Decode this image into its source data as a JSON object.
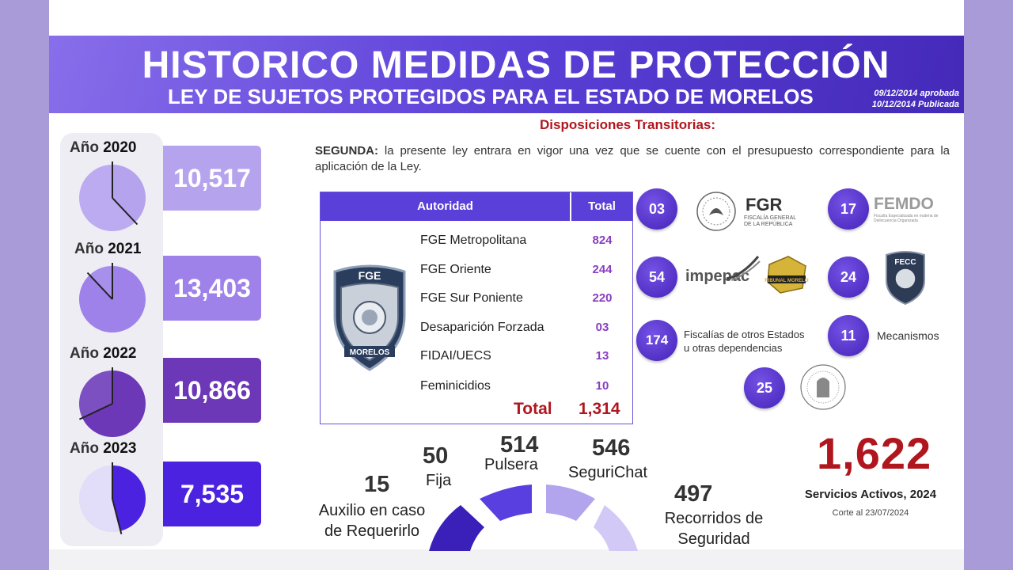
{
  "header": {
    "title": "HISTORICO MEDIDAS DE PROTECCIÓN",
    "subtitle": "LEY DE SUJETOS PROTEGIDOS PARA EL ESTADO DE MORELOS",
    "date_approved": "09/12/2014 aprobada",
    "date_published": "10/12/2014 Publicada"
  },
  "disposiciones": {
    "title": "Disposiciones Transitorias:",
    "segunda_label": "SEGUNDA:",
    "segunda_text": "la presente ley entrara en vigor una vez que se cuente con el presupuesto correspondiente para la aplicación de la Ley."
  },
  "years": [
    {
      "prefix": "Año",
      "year": "2020",
      "value": "10,517",
      "color": "#b6a3ee",
      "pie_fraction": 0.38
    },
    {
      "prefix": "Año",
      "year": "2021",
      "value": "13,403",
      "color": "#9e82ea",
      "pie_fraction": 0.88
    },
    {
      "prefix": "Año",
      "year": "2022",
      "value": "10,866",
      "color": "#6c38b8",
      "pie_fraction": 0.68
    },
    {
      "prefix": "Año",
      "year": "2023",
      "value": "7,535",
      "color": "#4b22e0",
      "pie_fraction": 0.46
    }
  ],
  "table": {
    "col_autoridad": "Autoridad",
    "col_total": "Total",
    "badge_top": "FGE",
    "badge_bottom": "MORELOS",
    "rows": [
      {
        "name": "FGE Metropolitana",
        "value": "824"
      },
      {
        "name": "FGE Oriente",
        "value": "244"
      },
      {
        "name": "FGE Sur Poniente",
        "value": "220"
      },
      {
        "name": "Desaparición Forzada",
        "value": "03"
      },
      {
        "name": "FIDAI/UECS",
        "value": "13"
      },
      {
        "name": "Feminicidios",
        "value": "10"
      }
    ],
    "total_label": "Total",
    "total_value": "1,314"
  },
  "agencies": {
    "fgr_count": "03",
    "fgr_logo": "FGR",
    "fgr_sub1": "FISCALÍA GENERAL",
    "fgr_sub2": "DE LA REPÚBLICA",
    "femdo_count": "17",
    "femdo_logo": "FEMDO",
    "femdo_sub": "Fiscalía Especializada en materia de Delincuencia Organizada",
    "impepac_count": "54",
    "impepac_logo": "impepac",
    "tribunal_logo": "TRIBUNAL MORELOS",
    "fecc_count": "24",
    "fecc_logo": "FECC",
    "otros_count": "174",
    "otros_label1": "Fiscalías  de otros Estados",
    "otros_label2": "u otras dependencias",
    "mecanismos_count": "11",
    "mecanismos_label": "Mecanismos",
    "tsj_count": "25"
  },
  "services": {
    "auxilio_num": "15",
    "auxilio_label1": "Auxilio en caso",
    "auxilio_label2": "de Requerirlo",
    "fija_num": "50",
    "fija_label": "Fija",
    "pulsera_num": "514",
    "pulsera_label": "Pulsera",
    "segurichat_num": "546",
    "segurichat_label": "SeguriChat",
    "recorridos_num": "497",
    "recorridos_label1": "Recorridos de",
    "recorridos_label2": "Seguridad",
    "total": "1,622",
    "total_label": "Servicios Activos, 2024",
    "corte": "Corte al 23/07/2024"
  },
  "colors": {
    "banner": "#5a3fd8",
    "accent_red": "#b0161e",
    "circle": "#4423b8"
  }
}
